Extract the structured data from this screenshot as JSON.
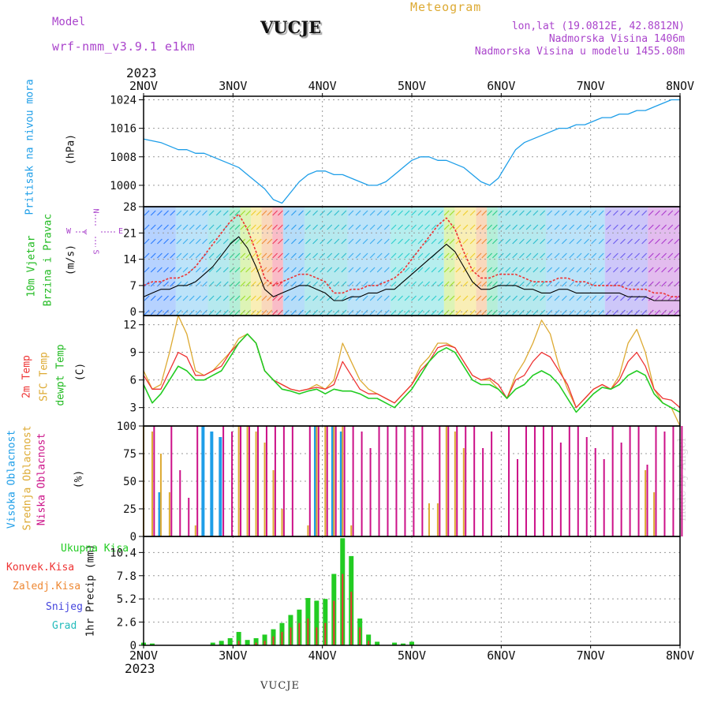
{
  "header": {
    "model_label": "Model",
    "model_name": "wrf-nmm_v3.9.1 e1km",
    "title": "VUCJE",
    "meteogram_label": "Meteogram",
    "coords": "lon,lat (19.0812E, 42.8812N)",
    "elevation": "Nadmorska Visina 1406m",
    "model_elevation": "Nadmorska Visina u modelu 1455.08m",
    "year_top": "2023",
    "year_bottom": "2023",
    "footer_station": "VUCJE",
    "credit": "made by Angel"
  },
  "colors": {
    "pressure": "#1e9ee8",
    "temp2m": "#ee3333",
    "sfc": "#ddaa33",
    "dewpt": "#22cc22",
    "wind_label": "#22bb22",
    "wind_speed": "#000000",
    "wind_gust": "#ee3333",
    "cloud_high": "#1e9ee8",
    "cloud_mid": "#ddaa33",
    "cloud_low": "#cc1188",
    "total_precip": "#22cc22",
    "conv_precip": "#ee3333",
    "strat_precip": "#ee8833",
    "snow": "#4444dd",
    "graupel": "#22bbbb",
    "compass": "#aa44cc",
    "grid": "#999999"
  },
  "compass": {
    "n": "N",
    "s": "S",
    "e": "E",
    "w": "W"
  },
  "chart_data": [
    {
      "type": "line",
      "x_ticks": [
        "2NOV",
        "3NOV",
        "4NOV",
        "5NOV",
        "6NOV",
        "7NOV",
        "8NOV"
      ],
      "ylabel": [
        "Pritisak na nivou mora",
        "(hPa)"
      ],
      "yticks": [
        1000,
        1008,
        1016,
        1024
      ],
      "ylim": [
        994,
        1025
      ],
      "series": [
        {
          "values": [
            1013,
            1012.5,
            1012,
            1011,
            1010,
            1010,
            1009,
            1009,
            1008,
            1007,
            1006,
            1005,
            1003,
            1001,
            999,
            996,
            995,
            998,
            1001,
            1003,
            1004,
            1004,
            1003,
            1003,
            1002,
            1001,
            1000,
            1000,
            1001,
            1003,
            1005,
            1007,
            1008,
            1008,
            1007,
            1007,
            1006,
            1005,
            1003,
            1001,
            1000,
            1002,
            1006,
            1010,
            1012,
            1013,
            1014,
            1015,
            1016,
            1016,
            1017,
            1017,
            1018,
            1019,
            1019,
            1020,
            1020,
            1021,
            1021,
            1022,
            1023,
            1024,
            1024
          ]
        }
      ],
      "grid": true
    },
    {
      "type": "line",
      "ylabel": [
        "10m Vjetar",
        "Brzina i Pravac",
        "(m/s)"
      ],
      "yticks": [
        0,
        7,
        14,
        21,
        28
      ],
      "ylim": [
        -1,
        28
      ],
      "series": [
        {
          "values": [
            4,
            5,
            6,
            6,
            7,
            7,
            8,
            10,
            12,
            15,
            18,
            20,
            17,
            12,
            6,
            4,
            5,
            6,
            7,
            7,
            6,
            5,
            3,
            3,
            4,
            4,
            5,
            5,
            6,
            6,
            8,
            10,
            12,
            14,
            16,
            18,
            16,
            12,
            8,
            6,
            6,
            7,
            7,
            7,
            6,
            6,
            5,
            5,
            6,
            6,
            5,
            5,
            5,
            5,
            5,
            5,
            4,
            4,
            4,
            3,
            3,
            3,
            3
          ]
        },
        {
          "values": [
            7,
            8,
            8,
            9,
            9,
            10,
            12,
            15,
            18,
            21,
            24,
            26,
            22,
            16,
            9,
            7,
            8,
            9,
            10,
            10,
            9,
            8,
            5,
            5,
            6,
            6,
            7,
            7,
            8,
            9,
            11,
            14,
            17,
            20,
            23,
            25,
            22,
            16,
            11,
            9,
            9,
            10,
            10,
            10,
            9,
            8,
            8,
            8,
            9,
            9,
            8,
            8,
            7,
            7,
            7,
            7,
            6,
            6,
            6,
            5,
            5,
            4,
            4
          ]
        }
      ],
      "grid": true
    },
    {
      "type": "line",
      "ylabel": [
        "2m Temp",
        "SFC Temp",
        "dewpt Temp",
        "(C)"
      ],
      "yticks": [
        3,
        6,
        9,
        12
      ],
      "ylim": [
        1,
        13
      ],
      "series": [
        {
          "values": [
            6.5,
            5,
            5,
            7,
            9,
            8.5,
            6.5,
            6.5,
            7,
            7.5,
            9,
            10,
            11,
            10,
            7,
            6,
            5.5,
            5,
            4.8,
            5,
            5.2,
            5,
            5.5,
            8,
            6.5,
            5,
            4.5,
            4.5,
            4,
            3.5,
            4.5,
            5.5,
            7,
            8,
            9.5,
            9.8,
            9.5,
            8,
            6.5,
            6,
            6.2,
            5.5,
            4,
            6,
            6.5,
            8,
            9,
            8.5,
            7,
            5.5,
            3,
            4,
            5,
            5.5,
            5,
            6,
            8,
            9,
            7.5,
            5,
            4,
            3.8,
            3
          ]
        },
        {
          "values": [
            7,
            5,
            5.5,
            9,
            13,
            11,
            7,
            6.5,
            7,
            8,
            9,
            10.5,
            11,
            10,
            7,
            6,
            5.5,
            5,
            4.8,
            5,
            5.5,
            5,
            6,
            10,
            8,
            6,
            5,
            4.5,
            4,
            3.5,
            4.5,
            5.5,
            7.5,
            8.5,
            10,
            10,
            9.5,
            8,
            6.5,
            6,
            6,
            5,
            4,
            6.5,
            8,
            10,
            12.5,
            11,
            7.5,
            5,
            3,
            4,
            5,
            5.5,
            5,
            6.5,
            10,
            11.5,
            9,
            5,
            3.5,
            3,
            1
          ]
        },
        {
          "values": [
            5.5,
            3.5,
            4.5,
            6,
            7.5,
            7,
            6,
            6,
            6.5,
            7,
            8.5,
            10,
            11,
            10,
            7,
            6,
            5,
            4.8,
            4.5,
            4.8,
            5,
            4.5,
            5,
            4.8,
            4.8,
            4.5,
            4,
            4,
            3.5,
            3,
            4,
            5,
            6.5,
            8,
            9,
            9.5,
            9,
            7.5,
            6,
            5.5,
            5.5,
            5,
            4,
            5,
            5.5,
            6.5,
            7,
            6.5,
            5.5,
            4,
            2.5,
            3.5,
            4.5,
            5.2,
            5,
            5.5,
            6.5,
            7,
            6.5,
            4.5,
            3.5,
            3,
            2.5
          ]
        }
      ],
      "grid": true
    },
    {
      "type": "bar",
      "ylabel": [
        "Visoka Oblacnost",
        "Srednja Oblacnost",
        "Niska Oblacnost",
        "(%)"
      ],
      "yticks": [
        0,
        25,
        50,
        75,
        100
      ],
      "ylim": [
        0,
        100
      ],
      "series": [
        {
          "values": [
            0,
            0,
            40,
            0,
            0,
            0,
            0,
            100,
            95,
            90,
            0,
            0,
            0,
            0,
            0,
            0,
            0,
            0,
            0,
            0,
            100,
            0,
            100,
            95,
            0,
            0,
            0,
            0,
            0,
            0,
            0,
            0,
            0,
            0,
            0,
            0,
            0,
            0,
            0,
            0,
            0,
            0,
            0,
            0,
            0,
            0,
            0,
            0,
            0,
            0,
            0,
            0,
            0,
            0,
            0,
            0,
            0,
            0,
            0,
            0,
            0,
            0,
            0
          ]
        },
        {
          "values": [
            100,
            95,
            75,
            40,
            0,
            0,
            10,
            0,
            0,
            0,
            0,
            100,
            100,
            95,
            85,
            60,
            25,
            0,
            0,
            10,
            100,
            100,
            100,
            100,
            10,
            0,
            0,
            0,
            0,
            0,
            0,
            0,
            0,
            30,
            30,
            100,
            95,
            80,
            0,
            0,
            0,
            0,
            0,
            0,
            0,
            0,
            0,
            0,
            0,
            0,
            0,
            0,
            0,
            0,
            0,
            0,
            0,
            0,
            60,
            40,
            0,
            0,
            0
          ]
        },
        {
          "values": [
            0,
            100,
            0,
            100,
            60,
            35,
            100,
            0,
            0,
            100,
            95,
            100,
            100,
            100,
            100,
            100,
            100,
            100,
            0,
            100,
            100,
            100,
            100,
            100,
            100,
            95,
            80,
            100,
            100,
            100,
            100,
            100,
            100,
            0,
            100,
            100,
            100,
            100,
            100,
            80,
            95,
            0,
            100,
            70,
            100,
            100,
            100,
            100,
            85,
            100,
            100,
            90,
            80,
            70,
            100,
            85,
            100,
            100,
            65,
            100,
            95,
            100,
            100
          ]
        }
      ],
      "grid": true
    },
    {
      "type": "bar",
      "ylabel": [
        "1hr Precip (mm)"
      ],
      "legend": [
        "Ukupna Kisa",
        "Konvek.Kisa",
        "Zaledj.Kisa",
        "Snijeg",
        "Grad"
      ],
      "yticks": [
        0,
        2.6,
        5.2,
        7.8,
        10.4
      ],
      "ylim": [
        0,
        12.2
      ],
      "series": [
        {
          "values": [
            0.3,
            0.2,
            0,
            0,
            0,
            0,
            0,
            0,
            0.3,
            0.5,
            0.8,
            1.5,
            0.6,
            0.8,
            1.2,
            1.8,
            2.5,
            3.4,
            4,
            5.3,
            5,
            5.2,
            8,
            12,
            10,
            3,
            1.2,
            0.4,
            0,
            0.3,
            0.2,
            0.4,
            0,
            0,
            0,
            0,
            0,
            0,
            0,
            0,
            0,
            0,
            0,
            0,
            0,
            0,
            0,
            0,
            0,
            0,
            0,
            0,
            0,
            0,
            0,
            0,
            0,
            0,
            0,
            0,
            0,
            0,
            0
          ]
        },
        {
          "values": [
            0,
            0,
            0,
            0,
            0,
            0,
            0,
            0,
            0,
            0,
            0,
            0.5,
            0,
            0.3,
            0.5,
            1,
            1.5,
            2,
            2.5,
            3,
            2,
            2.5,
            5,
            8,
            6,
            2,
            0.5,
            0,
            0,
            0,
            0,
            0,
            0,
            0,
            0,
            0,
            0,
            0,
            0,
            0,
            0,
            0,
            0,
            0,
            0,
            0,
            0,
            0,
            0,
            0,
            0,
            0,
            0,
            0,
            0,
            0,
            0,
            0,
            0,
            0,
            0,
            0,
            0
          ]
        }
      ],
      "grid": true
    }
  ]
}
